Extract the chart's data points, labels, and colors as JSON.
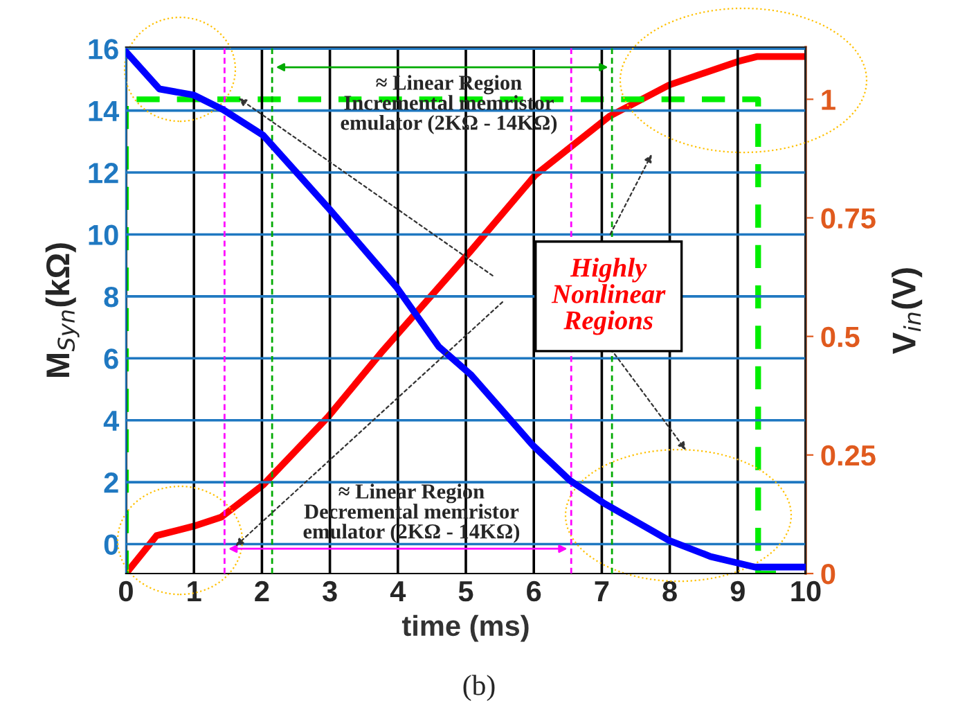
{
  "chart_data": {
    "type": "line",
    "xlabel": "time (ms)",
    "ylabel": "M$_{Syn}$(kΩ)",
    "y2label": "V$_{in}$(V)",
    "xlim": [
      0,
      10
    ],
    "xticks": [
      0,
      1,
      2,
      3,
      4,
      5,
      6,
      7,
      8,
      9,
      10
    ],
    "ylim": [
      -0.95,
      16.05
    ],
    "yticks": [
      0,
      2,
      4,
      6,
      8,
      10,
      12,
      14,
      16
    ],
    "y2lim": [
      0,
      1.11
    ],
    "y2ticks": [
      0,
      0.25,
      0.5,
      0.75,
      1
    ],
    "grid": true,
    "line_style": "solid",
    "series": [
      {
        "color": "#0000ff",
        "x": [
          0,
          0.49,
          1.0,
          1.43,
          2.02,
          3.0,
          3.98,
          4.6,
          5.07,
          5.99,
          6.53,
          7.04,
          7.99,
          8.6,
          9.25,
          10
        ],
        "values": [
          15.9,
          14.7,
          14.5,
          14.03,
          13.2,
          10.8,
          8.3,
          6.38,
          5.48,
          3.18,
          2.06,
          1.31,
          0.12,
          -0.4,
          -0.74,
          -0.74
        ]
      },
      {
        "axis": "y2",
        "color": "#ff0000",
        "x": [
          0,
          0.45,
          1.0,
          1.4,
          2.02,
          2.97,
          3.78,
          5.07,
          6.02,
          7.11,
          7.99,
          9.01,
          9.28,
          10
        ],
        "values": [
          0.0,
          0.08,
          0.1,
          0.119,
          0.187,
          0.33,
          0.47,
          0.68,
          0.84,
          0.964,
          1.03,
          1.08,
          1.09,
          1.09
        ]
      },
      {
        "axis": "y2",
        "color": "#00ee00",
        "line_style": "dashed",
        "x": [
          0,
          0,
          9.3,
          9.3,
          9.7
        ],
        "values": [
          0,
          1,
          1,
          0,
          0
        ]
      }
    ],
    "ref_lines": [
      {
        "axis": "x",
        "value": 2.15,
        "color": "#00aa00",
        "line_style": "dashed"
      },
      {
        "axis": "x",
        "value": 7.15,
        "color": "#00aa00",
        "line_style": "dashed"
      },
      {
        "axis": "x",
        "value": 1.45,
        "color": "#ff00ff",
        "line_style": "dashed"
      },
      {
        "axis": "x",
        "value": 6.55,
        "color": "#ff00ff",
        "line_style": "dashed"
      }
    ],
    "annotations": [
      "≈ Linear Region\nIncremental memristor\nemulator (2KΩ - 14KΩ)",
      "≈ Linear Region\nDecremental memristor\nemulator (2KΩ - 14KΩ)",
      "Highly\nNonlinear\nRegions",
      "(b)"
    ]
  }
}
